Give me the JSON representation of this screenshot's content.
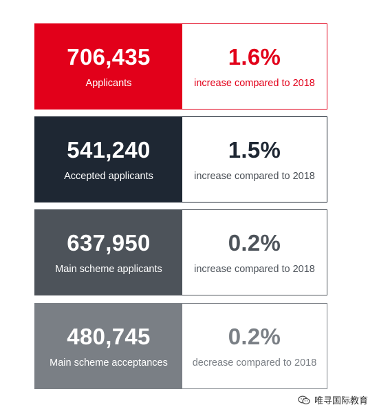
{
  "stats": [
    {
      "value": "706,435",
      "label": "Applicants",
      "change": "1.6%",
      "description": "increase compared to 2018"
    },
    {
      "value": "541,240",
      "label": "Accepted applicants",
      "change": "1.5%",
      "description": "increase compared to 2018"
    },
    {
      "value": "637,950",
      "label": "Main scheme applicants",
      "change": "0.2%",
      "description": "increase compared to 2018"
    },
    {
      "value": "480,745",
      "label": "Main scheme acceptances",
      "change": "0.2%",
      "description": "decrease compared to 2018"
    }
  ],
  "colors": {
    "card_1": "#e2001a",
    "card_2": "#1e2733",
    "card_3": "#4d535a",
    "card_4": "#7a7f85"
  },
  "watermark": {
    "icon": "wechat-icon",
    "text": "唯寻国际教育"
  }
}
